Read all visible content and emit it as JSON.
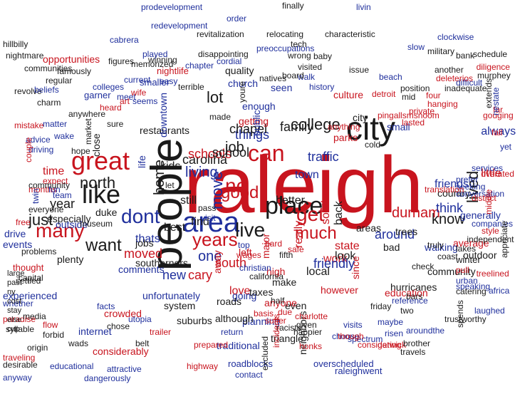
{
  "colors": {
    "black": "#1a1a1a",
    "red": "#c8141e",
    "blue": "#1f2f9c"
  },
  "words": [
    {
      "text": "raleigh",
      "color": "red"
    },
    {
      "text": "people",
      "color": "black"
    },
    {
      "text": "area",
      "color": "blue"
    },
    {
      "text": "city",
      "color": "black"
    },
    {
      "text": "great",
      "color": "red"
    },
    {
      "text": "place",
      "color": "black"
    },
    {
      "text": "like",
      "color": "black"
    },
    {
      "text": "live",
      "color": "black"
    },
    {
      "text": "can",
      "color": "red"
    },
    {
      "text": "dont",
      "color": "blue"
    },
    {
      "text": "nc",
      "color": "red"
    },
    {
      "text": "years",
      "color": "red"
    },
    {
      "text": "get",
      "color": "red"
    },
    {
      "text": "good",
      "color": "red"
    },
    {
      "text": "many",
      "color": "red"
    },
    {
      "text": "want",
      "color": "black"
    },
    {
      "text": "lived",
      "color": "black"
    },
    {
      "text": "just",
      "color": "black"
    },
    {
      "text": "move",
      "color": "blue"
    },
    {
      "text": "much",
      "color": "red"
    },
    {
      "text": "know",
      "color": "black"
    },
    {
      "text": "living",
      "color": "blue"
    },
    {
      "text": "carolina",
      "color": "black"
    },
    {
      "text": "one",
      "color": "blue"
    },
    {
      "text": "north",
      "color": "black"
    },
    {
      "text": "lot",
      "color": "black"
    },
    {
      "text": "college",
      "color": "black"
    },
    {
      "text": "schools",
      "color": "red"
    },
    {
      "text": "school",
      "color": "black"
    },
    {
      "text": "job",
      "color": "black"
    },
    {
      "text": "moved",
      "color": "red"
    },
    {
      "text": "things",
      "color": "blue"
    },
    {
      "text": "home",
      "color": "black"
    },
    {
      "text": "durham",
      "color": "red"
    },
    {
      "text": "southern",
      "color": "red"
    },
    {
      "text": "around",
      "color": "blue"
    },
    {
      "text": "state",
      "color": "red"
    },
    {
      "text": "really",
      "color": "red"
    },
    {
      "text": "work",
      "color": "red"
    },
    {
      "text": "think",
      "color": "blue"
    },
    {
      "text": "family",
      "color": "black"
    },
    {
      "text": "traffic",
      "color": "blue"
    },
    {
      "text": "better",
      "color": "black"
    },
    {
      "text": "chapel",
      "color": "black"
    },
    {
      "text": "south",
      "color": "red"
    },
    {
      "text": "friendly",
      "color": "blue"
    },
    {
      "text": "cary",
      "color": "red"
    },
    {
      "text": "new",
      "color": "blue"
    },
    {
      "text": "town",
      "color": "blue"
    },
    {
      "text": "still",
      "color": "black"
    },
    {
      "text": "year",
      "color": "black"
    },
    {
      "text": "back",
      "color": "black"
    },
    {
      "text": "look",
      "color": "black"
    },
    {
      "text": "kids",
      "color": "black"
    },
    {
      "text": "time",
      "color": "red"
    },
    {
      "text": "best",
      "color": "black"
    },
    {
      "text": "find",
      "color": "black"
    },
    {
      "text": "since",
      "color": "red"
    },
    {
      "text": "love",
      "color": "red"
    },
    {
      "text": "always",
      "color": "blue"
    },
    {
      "text": "little",
      "color": "red"
    },
    {
      "text": "thats",
      "color": "blue"
    },
    {
      "text": "jobs",
      "color": "black"
    },
    {
      "text": "local",
      "color": "black"
    },
    {
      "text": "bad",
      "color": "black"
    },
    {
      "text": "trees",
      "color": "black"
    },
    {
      "text": "areas",
      "color": "black"
    },
    {
      "text": "country",
      "color": "black"
    },
    {
      "text": "friends",
      "color": "blue"
    },
    {
      "text": "generally",
      "color": "blue"
    },
    {
      "text": "parks",
      "color": "red"
    },
    {
      "text": "culture",
      "color": "red"
    },
    {
      "text": "city",
      "color": "black"
    },
    {
      "text": "small",
      "color": "blue"
    },
    {
      "text": "cold",
      "color": "black"
    },
    {
      "text": "seen",
      "color": "blue"
    },
    {
      "text": "church",
      "color": "blue"
    },
    {
      "text": "quality",
      "color": "black"
    },
    {
      "text": "enough",
      "color": "blue"
    },
    {
      "text": "getting",
      "color": "red"
    },
    {
      "text": "public",
      "color": "blue"
    },
    {
      "text": "even",
      "color": "black"
    },
    {
      "text": "make",
      "color": "black"
    },
    {
      "text": "high",
      "color": "red"
    },
    {
      "text": "major",
      "color": "red"
    },
    {
      "text": "left",
      "color": "red"
    },
    {
      "text": "away",
      "color": "red"
    },
    {
      "text": "going",
      "color": "blue"
    },
    {
      "text": "anyone",
      "color": "red"
    },
    {
      "text": "however",
      "color": "red"
    },
    {
      "text": "comments",
      "color": "blue"
    },
    {
      "text": "especially",
      "color": "black"
    },
    {
      "text": "outside",
      "color": "blue"
    },
    {
      "text": "museum",
      "color": "black"
    },
    {
      "text": "duke",
      "color": "black"
    },
    {
      "text": "events",
      "color": "blue"
    },
    {
      "text": "drive",
      "color": "blue"
    },
    {
      "text": "problems",
      "color": "black"
    },
    {
      "text": "thought",
      "color": "red"
    },
    {
      "text": "plenty",
      "color": "black"
    },
    {
      "text": "unfortunately",
      "color": "blue"
    },
    {
      "text": "southerners",
      "color": "black"
    },
    {
      "text": "system",
      "color": "black"
    },
    {
      "text": "roads",
      "color": "black"
    },
    {
      "text": "taxes",
      "color": "black"
    },
    {
      "text": "planning",
      "color": "blue"
    },
    {
      "text": "triangle",
      "color": "black"
    },
    {
      "text": "neighbors",
      "color": "black"
    },
    {
      "text": "hurricanes",
      "color": "black"
    },
    {
      "text": "community",
      "color": "black"
    },
    {
      "text": "education",
      "color": "red"
    },
    {
      "text": "average",
      "color": "red"
    },
    {
      "text": "outdoor",
      "color": "black"
    },
    {
      "text": "conversation",
      "color": "blue"
    },
    {
      "text": "seeking",
      "color": "blue"
    },
    {
      "text": "prefer",
      "color": "blue"
    },
    {
      "text": "services",
      "color": "blue"
    },
    {
      "text": "walking",
      "color": "blue"
    },
    {
      "text": "winter",
      "color": "black"
    },
    {
      "text": "lakes",
      "color": "black"
    },
    {
      "text": "truly",
      "color": "black"
    },
    {
      "text": "coast",
      "color": "black"
    },
    {
      "text": "check",
      "color": "black"
    },
    {
      "text": "speaking",
      "color": "blue"
    },
    {
      "text": "suburbs",
      "color": "black"
    },
    {
      "text": "although",
      "color": "black"
    },
    {
      "text": "experienced",
      "color": "blue"
    },
    {
      "text": "capital",
      "color": "black"
    },
    {
      "text": "settled",
      "color": "black"
    },
    {
      "text": "internet",
      "color": "blue"
    },
    {
      "text": "crowded",
      "color": "red"
    },
    {
      "text": "considerably",
      "color": "red"
    },
    {
      "text": "traditional",
      "color": "blue"
    },
    {
      "text": "roadblocks",
      "color": "blue"
    },
    {
      "text": "overscheduled",
      "color": "blue"
    },
    {
      "text": "raleighwent",
      "color": "blue"
    },
    {
      "text": "restaurants",
      "color": "black"
    },
    {
      "text": "downtown",
      "color": "blue"
    },
    {
      "text": "opportunities",
      "color": "red"
    },
    {
      "text": "communities",
      "color": "black"
    },
    {
      "text": "prodevelopment",
      "color": "blue"
    },
    {
      "text": "redevelopment",
      "color": "blue"
    },
    {
      "text": "revitalization",
      "color": "black"
    },
    {
      "text": "disappointing",
      "color": "black"
    },
    {
      "text": "characteristic",
      "color": "black"
    },
    {
      "text": "nightmare",
      "color": "black"
    },
    {
      "text": "hillbilly",
      "color": "black"
    },
    {
      "text": "preoccupations",
      "color": "blue"
    },
    {
      "text": "memorized",
      "color": "black"
    },
    {
      "text": "winning",
      "color": "black"
    },
    {
      "text": "nightlife",
      "color": "red"
    },
    {
      "text": "smaller",
      "color": "blue"
    },
    {
      "text": "colleges",
      "color": "blue"
    },
    {
      "text": "garner",
      "color": "blue"
    },
    {
      "text": "current",
      "color": "blue"
    },
    {
      "text": "regular",
      "color": "black"
    },
    {
      "text": "famously",
      "color": "black"
    },
    {
      "text": "revolve",
      "color": "black"
    },
    {
      "text": "beliefs",
      "color": "blue"
    },
    {
      "text": "charm",
      "color": "black"
    },
    {
      "text": "mistake",
      "color": "red"
    },
    {
      "text": "advice",
      "color": "blue"
    },
    {
      "text": "driving",
      "color": "blue"
    },
    {
      "text": "couple",
      "color": "red"
    },
    {
      "text": "months",
      "color": "red"
    },
    {
      "text": "expect",
      "color": "red"
    },
    {
      "text": "hope",
      "color": "black"
    },
    {
      "text": "team",
      "color": "blue"
    },
    {
      "text": "everyone",
      "color": "black"
    },
    {
      "text": "free",
      "color": "red"
    },
    {
      "text": "twin",
      "color": "blue"
    },
    {
      "text": "fun",
      "color": "blue"
    },
    {
      "text": "community",
      "color": "black"
    },
    {
      "text": "anywhere",
      "color": "black"
    },
    {
      "text": "market",
      "color": "black"
    },
    {
      "text": "wake",
      "color": "blue"
    },
    {
      "text": "matter",
      "color": "blue"
    },
    {
      "text": "heard",
      "color": "red"
    },
    {
      "text": "art",
      "color": "red"
    },
    {
      "text": "meet",
      "color": "blue"
    },
    {
      "text": "wife",
      "color": "red"
    },
    {
      "text": "seems",
      "color": "blue"
    },
    {
      "text": "easy",
      "color": "blue"
    },
    {
      "text": "terrible",
      "color": "black"
    },
    {
      "text": "made",
      "color": "black"
    },
    {
      "text": "youre",
      "color": "black"
    },
    {
      "text": "yet",
      "color": "blue"
    },
    {
      "text": "fall",
      "color": "red"
    },
    {
      "text": "far",
      "color": "red"
    },
    {
      "text": "sure",
      "color": "black"
    },
    {
      "text": "close",
      "color": "black"
    },
    {
      "text": "life",
      "color": "blue"
    },
    {
      "text": "let",
      "color": "black"
    },
    {
      "text": "walk",
      "color": "blue"
    },
    {
      "text": "history",
      "color": "blue"
    },
    {
      "text": "visited",
      "color": "black"
    },
    {
      "text": "natives",
      "color": "black"
    },
    {
      "text": "wrong",
      "color": "black"
    },
    {
      "text": "tech",
      "color": "black"
    },
    {
      "text": "military",
      "color": "black"
    },
    {
      "text": "bank",
      "color": "black"
    },
    {
      "text": "schedule",
      "color": "black"
    },
    {
      "text": "murphey",
      "color": "black"
    },
    {
      "text": "diligence",
      "color": "red"
    },
    {
      "text": "difficult",
      "color": "blue"
    },
    {
      "text": "extends",
      "color": "black"
    },
    {
      "text": "gouging",
      "color": "red"
    },
    {
      "text": "overated",
      "color": "red"
    },
    {
      "text": "district",
      "color": "red"
    },
    {
      "text": "translation",
      "color": "red"
    },
    {
      "text": "companies",
      "color": "blue"
    },
    {
      "text": "independent",
      "color": "black"
    },
    {
      "text": "style",
      "color": "red"
    },
    {
      "text": "middle",
      "color": "red"
    },
    {
      "text": "pull",
      "color": "red"
    },
    {
      "text": "urban",
      "color": "blue"
    },
    {
      "text": "catering",
      "color": "black"
    },
    {
      "text": "appriciate",
      "color": "black"
    },
    {
      "text": "treelined",
      "color": "red"
    },
    {
      "text": "africa",
      "color": "blue"
    },
    {
      "text": "laughed",
      "color": "blue"
    },
    {
      "text": "spends",
      "color": "black"
    },
    {
      "text": "trustworthy",
      "color": "black"
    },
    {
      "text": "travels",
      "color": "black"
    },
    {
      "text": "risen",
      "color": "blue"
    },
    {
      "text": "spectrum",
      "color": "blue"
    },
    {
      "text": "gatwick",
      "color": "red"
    },
    {
      "text": "brother",
      "color": "black"
    },
    {
      "text": "aroundthe",
      "color": "blue"
    },
    {
      "text": "reference",
      "color": "blue"
    },
    {
      "text": "friday",
      "color": "black"
    },
    {
      "text": "visits",
      "color": "blue"
    },
    {
      "text": "choose",
      "color": "blue"
    },
    {
      "text": "honks",
      "color": "red"
    },
    {
      "text": "happier",
      "color": "black"
    },
    {
      "text": "racists",
      "color": "black"
    },
    {
      "text": "suffer",
      "color": "red"
    },
    {
      "text": "basis",
      "color": "red"
    },
    {
      "text": "return",
      "color": "blue"
    },
    {
      "text": "prepared",
      "color": "red"
    },
    {
      "text": "highway",
      "color": "red"
    },
    {
      "text": "contact",
      "color": "blue"
    },
    {
      "text": "excluded",
      "color": "black"
    },
    {
      "text": "incidents",
      "color": "red"
    },
    {
      "text": "dangerously",
      "color": "blue"
    },
    {
      "text": "attractive",
      "color": "blue"
    },
    {
      "text": "educational",
      "color": "blue"
    },
    {
      "text": "origin",
      "color": "black"
    },
    {
      "text": "wads",
      "color": "black"
    },
    {
      "text": "syllable",
      "color": "black"
    },
    {
      "text": "paradise",
      "color": "red"
    },
    {
      "text": "traveling",
      "color": "red"
    },
    {
      "text": "desirable",
      "color": "black"
    },
    {
      "text": "anyway",
      "color": "blue"
    },
    {
      "text": "whether",
      "color": "blue"
    },
    {
      "text": "media",
      "color": "black"
    },
    {
      "text": "flow",
      "color": "red"
    },
    {
      "text": "forbid",
      "color": "black"
    },
    {
      "text": "chose",
      "color": "black"
    },
    {
      "text": "facts",
      "color": "blue"
    },
    {
      "text": "utopia",
      "color": "blue"
    },
    {
      "text": "belt",
      "color": "black"
    },
    {
      "text": "trailer",
      "color": "red"
    },
    {
      "text": "order",
      "color": "blue"
    },
    {
      "text": "relocating",
      "color": "black"
    },
    {
      "text": "finally",
      "color": "black"
    },
    {
      "text": "livin",
      "color": "blue"
    },
    {
      "text": "slow",
      "color": "blue"
    },
    {
      "text": "clockwise",
      "color": "blue"
    },
    {
      "text": "another",
      "color": "black"
    },
    {
      "text": "deleterios",
      "color": "red"
    },
    {
      "text": "inadequate",
      "color": "black"
    },
    {
      "text": "nestate",
      "color": "blue"
    },
    {
      "text": "figures",
      "color": "black"
    },
    {
      "text": "cabrera",
      "color": "blue"
    },
    {
      "text": "played",
      "color": "blue"
    },
    {
      "text": "chapter",
      "color": "blue"
    },
    {
      "text": "cordial",
      "color": "blue"
    },
    {
      "text": "baby",
      "color": "black"
    },
    {
      "text": "board",
      "color": "black"
    },
    {
      "text": "detroit",
      "color": "red"
    },
    {
      "text": "issue",
      "color": "black"
    },
    {
      "text": "beach",
      "color": "blue"
    },
    {
      "text": "position",
      "color": "black"
    },
    {
      "text": "mid",
      "color": "black"
    },
    {
      "text": "four",
      "color": "red"
    },
    {
      "text": "hanging",
      "color": "red"
    },
    {
      "text": "private",
      "color": "red"
    },
    {
      "text": "lasted",
      "color": "red"
    },
    {
      "text": "pingallsmsnoom",
      "color": "red"
    },
    {
      "text": "anything",
      "color": "red"
    },
    {
      "text": "wages",
      "color": "red"
    },
    {
      "text": "christian",
      "color": "blue"
    },
    {
      "text": "california",
      "color": "black"
    },
    {
      "text": "given",
      "color": "black"
    },
    {
      "text": "charlotte",
      "color": "red"
    },
    {
      "text": "though",
      "color": "red"
    },
    {
      "text": "considering",
      "color": "red"
    },
    {
      "text": "maybe",
      "color": "blue"
    },
    {
      "text": "two",
      "color": "black"
    },
    {
      "text": "bars",
      "color": "black"
    },
    {
      "text": "half",
      "color": "black"
    },
    {
      "text": "due",
      "color": "red"
    },
    {
      "text": "safe",
      "color": "red"
    },
    {
      "text": "hard",
      "color": "red"
    },
    {
      "text": "top",
      "color": "blue"
    },
    {
      "text": "fifth",
      "color": "black"
    },
    {
      "text": "pass",
      "color": "black"
    },
    {
      "text": "visit",
      "color": "blue"
    },
    {
      "text": "large",
      "color": "black"
    },
    {
      "text": "past",
      "color": "black"
    },
    {
      "text": "ny",
      "color": "black"
    },
    {
      "text": "cost",
      "color": "black"
    },
    {
      "text": "stay",
      "color": "black"
    },
    {
      "text": "else",
      "color": "black"
    },
    {
      "text": "cup",
      "color": "black"
    }
  ]
}
